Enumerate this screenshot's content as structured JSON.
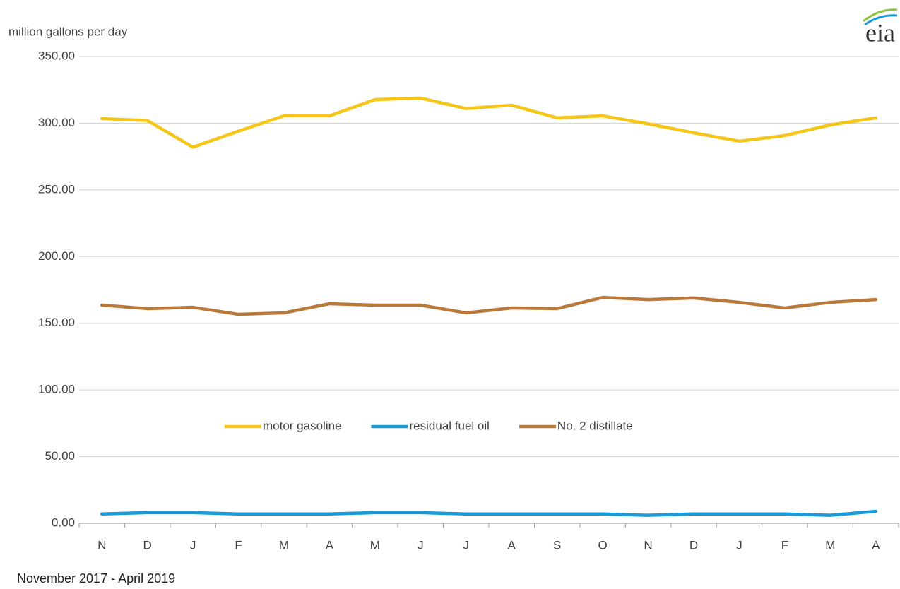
{
  "chart_data": {
    "type": "line",
    "y_axis_label": "million gallons per day",
    "x_axis_label": "November 2017  -  April 2019",
    "logo": "eia",
    "categories": [
      "N",
      "D",
      "J",
      "F",
      "M",
      "A",
      "M",
      "J",
      "J",
      "A",
      "S",
      "O",
      "N",
      "D",
      "J",
      "F",
      "M",
      "A"
    ],
    "series": [
      {
        "name": "motor gasoline",
        "color": "#f5c518",
        "values": [
          303.4,
          302,
          282,
          294,
          305.5,
          305.5,
          317.7,
          318.8,
          311,
          313.5,
          304,
          305.5,
          299.5,
          292.8,
          286.5,
          290.7,
          298.7,
          304
        ]
      },
      {
        "name": "residual fuel oil",
        "color": "#1a9ad6",
        "values": [
          7,
          8,
          8,
          7,
          7,
          7,
          8,
          8,
          7,
          7,
          7,
          7,
          6,
          7,
          7,
          7,
          6,
          9
        ]
      },
      {
        "name": "No. 2 distillate",
        "color": "#b8793a",
        "values": [
          163.6,
          161,
          162,
          156.7,
          157.8,
          164.7,
          163.6,
          163.6,
          157.8,
          161.5,
          161,
          169.4,
          167.8,
          169,
          165.7,
          161.5,
          165.7,
          167.8
        ]
      }
    ],
    "ylim": [
      0,
      350
    ],
    "yticks": [
      {
        "value": 0,
        "label": "0.00"
      },
      {
        "value": 50,
        "label": "50.00"
      },
      {
        "value": 100,
        "label": "100.00"
      },
      {
        "value": 150,
        "label": "150.00"
      },
      {
        "value": 200,
        "label": "200.00"
      },
      {
        "value": 250,
        "label": "250.00"
      },
      {
        "value": 300,
        "label": "300.00"
      },
      {
        "value": 350,
        "label": "350.00"
      }
    ],
    "grid": true,
    "legend": "center"
  }
}
